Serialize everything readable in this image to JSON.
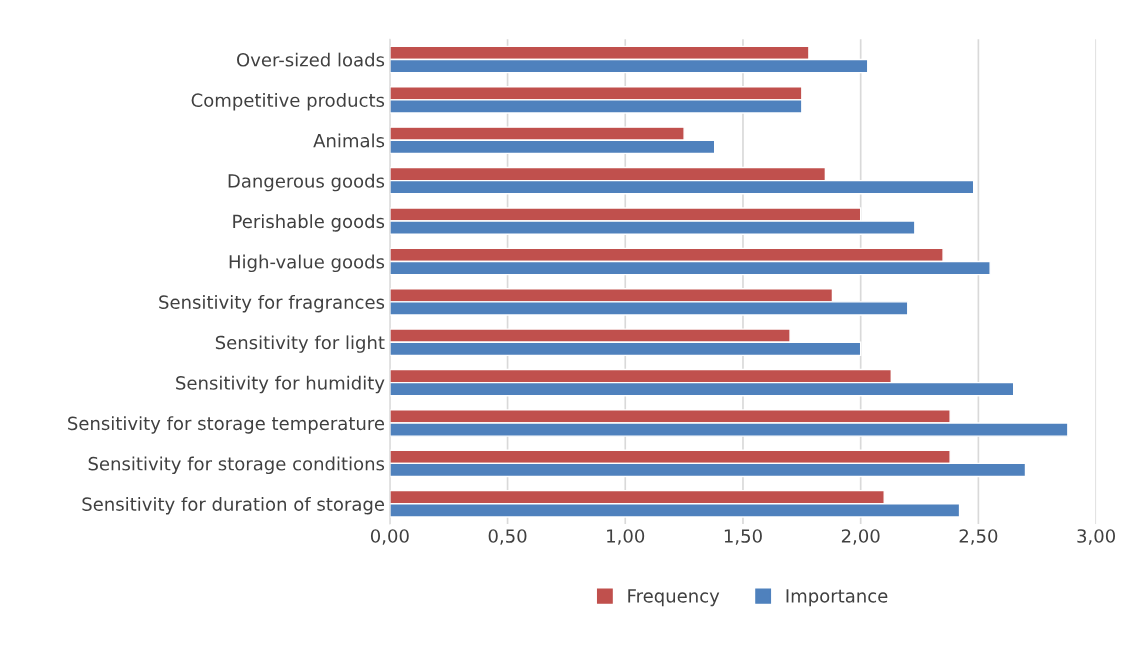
{
  "chart_data": {
    "type": "bar",
    "orientation": "horizontal",
    "categories": [
      "Over-sized loads",
      "Competitive products",
      "Animals",
      "Dangerous goods",
      "Perishable goods",
      "High-value goods",
      "Sensitivity for fragrances",
      "Sensitivity for light",
      "Sensitivity for humidity",
      "Sensitivity for storage temperature",
      "Sensitivity for storage conditions",
      "Sensitivity for duration of storage"
    ],
    "series": [
      {
        "name": "Frequency",
        "color": "#c0504d",
        "values": [
          1.78,
          1.75,
          1.25,
          1.85,
          2.0,
          2.35,
          1.88,
          1.7,
          2.13,
          2.38,
          2.38,
          2.1
        ]
      },
      {
        "name": "Importance",
        "color": "#4f81bd",
        "values": [
          2.03,
          1.75,
          1.38,
          2.48,
          2.23,
          2.55,
          2.2,
          2.0,
          2.65,
          2.88,
          2.7,
          2.42
        ]
      }
    ],
    "xlim": [
      0,
      3
    ],
    "xticks": [
      {
        "value": 0,
        "label": "0,00"
      },
      {
        "value": 0.5,
        "label": "0,50"
      },
      {
        "value": 1,
        "label": "1,00"
      },
      {
        "value": 1.5,
        "label": "1,50"
      },
      {
        "value": 2,
        "label": "2,00"
      },
      {
        "value": 2.5,
        "label": "2,50"
      },
      {
        "value": 3,
        "label": "3,00"
      }
    ],
    "grid": "x",
    "legend": "bottom"
  }
}
